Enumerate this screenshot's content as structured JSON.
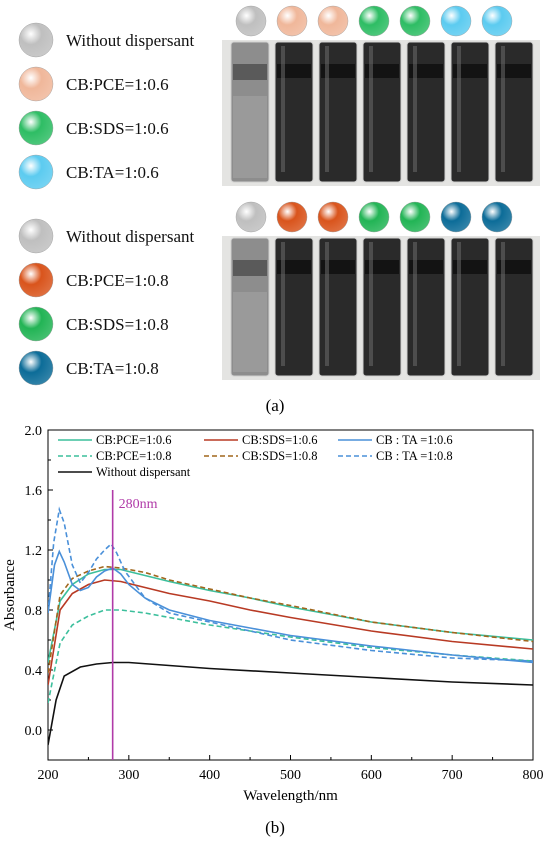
{
  "panel_a": {
    "label": "(a)",
    "groups": [
      {
        "legend": [
          {
            "label": "Without dispersant",
            "color": "#bfbfbf"
          },
          {
            "label": "CB:PCE=1:0.6",
            "color": "#f0b79a"
          },
          {
            "label": "CB:SDS=1:0.6",
            "color": "#2ebd64"
          },
          {
            "label": "CB:TA=1:0.6",
            "color": "#5ccbf0"
          }
        ],
        "vial_balls": [
          "#bfbfbf",
          "#f0b79a",
          "#f0b79a",
          "#2ebd64",
          "#2ebd64",
          "#5ccbf0",
          "#5ccbf0"
        ]
      },
      {
        "legend": [
          {
            "label": "Without dispersant",
            "color": "#bfbfbf"
          },
          {
            "label": "CB:PCE=1:0.8",
            "color": "#d9541c"
          },
          {
            "label": "CB:SDS=1:0.8",
            "color": "#22b455"
          },
          {
            "label": "CB:TA=1:0.8",
            "color": "#0c6c98"
          }
        ],
        "vial_balls": [
          "#bfbfbf",
          "#d9541c",
          "#d9541c",
          "#22b455",
          "#22b455",
          "#0c6c98",
          "#0c6c98"
        ]
      }
    ]
  },
  "panel_b": {
    "label": "(b)",
    "chart_data": {
      "type": "line",
      "title": "",
      "xlabel": "Wavelength/nm",
      "ylabel": "Absorbance",
      "xlim": [
        200,
        800
      ],
      "ylim": [
        -0.2,
        2.0
      ],
      "x_ticks": [
        200,
        300,
        400,
        500,
        600,
        700,
        800
      ],
      "y_ticks": [
        0.0,
        0.4,
        0.8,
        1.2,
        1.6,
        2.0
      ],
      "y_tick_labels": [
        "0.0",
        "0.4",
        "0.8",
        "1.2",
        "1.6",
        "2.0"
      ],
      "grid": false,
      "legend_position": "top",
      "annotation": {
        "x": 280,
        "label": "280nm",
        "color": "#b03aa8"
      },
      "series": [
        {
          "name": "CB:PCE=1:0.6",
          "color": "#3cbf9c",
          "dash": "solid",
          "points": [
            [
              200,
              0.45
            ],
            [
              215,
              0.86
            ],
            [
              230,
              0.97
            ],
            [
              250,
              1.04
            ],
            [
              270,
              1.07
            ],
            [
              290,
              1.07
            ],
            [
              320,
              1.03
            ],
            [
              350,
              0.99
            ],
            [
              400,
              0.93
            ],
            [
              450,
              0.88
            ],
            [
              500,
              0.82
            ],
            [
              600,
              0.72
            ],
            [
              700,
              0.65
            ],
            [
              800,
              0.6
            ]
          ]
        },
        {
          "name": "CB:PCE=1:0.8",
          "color": "#3cbf9c",
          "dash": "dashed",
          "points": [
            [
              200,
              0.18
            ],
            [
              215,
              0.58
            ],
            [
              230,
              0.7
            ],
            [
              250,
              0.76
            ],
            [
              270,
              0.8
            ],
            [
              290,
              0.8
            ],
            [
              320,
              0.78
            ],
            [
              350,
              0.75
            ],
            [
              400,
              0.7
            ],
            [
              450,
              0.66
            ],
            [
              500,
              0.62
            ],
            [
              600,
              0.55
            ],
            [
              700,
              0.5
            ],
            [
              800,
              0.46
            ]
          ]
        },
        {
          "name": "CB:SDS=1:0.6",
          "color": "#b83a24",
          "dash": "solid",
          "points": [
            [
              200,
              0.3
            ],
            [
              215,
              0.8
            ],
            [
              230,
              0.91
            ],
            [
              250,
              0.97
            ],
            [
              270,
              1.0
            ],
            [
              290,
              0.99
            ],
            [
              320,
              0.95
            ],
            [
              350,
              0.91
            ],
            [
              400,
              0.86
            ],
            [
              450,
              0.8
            ],
            [
              500,
              0.75
            ],
            [
              600,
              0.66
            ],
            [
              700,
              0.59
            ],
            [
              800,
              0.54
            ]
          ]
        },
        {
          "name": "CB:SDS=1:0.8",
          "color": "#a0661c",
          "dash": "dashed",
          "points": [
            [
              200,
              0.38
            ],
            [
              215,
              0.9
            ],
            [
              230,
              1.01
            ],
            [
              250,
              1.06
            ],
            [
              270,
              1.09
            ],
            [
              290,
              1.08
            ],
            [
              320,
              1.05
            ],
            [
              350,
              1.0
            ],
            [
              400,
              0.94
            ],
            [
              450,
              0.88
            ],
            [
              500,
              0.83
            ],
            [
              600,
              0.72
            ],
            [
              700,
              0.65
            ],
            [
              800,
              0.59
            ]
          ]
        },
        {
          "name": "CB : TA =1:0.6",
          "color": "#4a90d9",
          "dash": "solid",
          "points": [
            [
              200,
              0.78
            ],
            [
              208,
              1.1
            ],
            [
              214,
              1.19
            ],
            [
              220,
              1.12
            ],
            [
              230,
              0.97
            ],
            [
              240,
              0.93
            ],
            [
              250,
              0.95
            ],
            [
              260,
              1.02
            ],
            [
              270,
              1.06
            ],
            [
              280,
              1.08
            ],
            [
              290,
              1.04
            ],
            [
              300,
              0.97
            ],
            [
              320,
              0.88
            ],
            [
              350,
              0.8
            ],
            [
              400,
              0.73
            ],
            [
              450,
              0.68
            ],
            [
              500,
              0.63
            ],
            [
              600,
              0.56
            ],
            [
              700,
              0.5
            ],
            [
              800,
              0.45
            ]
          ]
        },
        {
          "name": "CB : TA =1:0.8",
          "color": "#4a90d9",
          "dash": "dashed",
          "points": [
            [
              200,
              0.78
            ],
            [
              207,
              1.25
            ],
            [
              214,
              1.47
            ],
            [
              220,
              1.38
            ],
            [
              230,
              1.1
            ],
            [
              240,
              0.98
            ],
            [
              250,
              1.05
            ],
            [
              260,
              1.14
            ],
            [
              270,
              1.2
            ],
            [
              278,
              1.24
            ],
            [
              285,
              1.18
            ],
            [
              295,
              1.06
            ],
            [
              320,
              0.88
            ],
            [
              350,
              0.78
            ],
            [
              400,
              0.72
            ],
            [
              450,
              0.66
            ],
            [
              500,
              0.6
            ],
            [
              600,
              0.53
            ],
            [
              700,
              0.48
            ],
            [
              800,
              0.46
            ]
          ]
        },
        {
          "name": "Without dispersant",
          "color": "#111111",
          "dash": "solid",
          "points": [
            [
              200,
              -0.1
            ],
            [
              210,
              0.2
            ],
            [
              220,
              0.36
            ],
            [
              240,
              0.42
            ],
            [
              260,
              0.44
            ],
            [
              280,
              0.45
            ],
            [
              300,
              0.45
            ],
            [
              350,
              0.43
            ],
            [
              400,
              0.41
            ],
            [
              500,
              0.38
            ],
            [
              600,
              0.35
            ],
            [
              700,
              0.32
            ],
            [
              800,
              0.3
            ]
          ]
        }
      ],
      "legend_rows": [
        [
          "CB:PCE=1:0.6",
          "CB:SDS=1:0.6",
          "CB : TA =1:0.6"
        ],
        [
          "CB:PCE=1:0.8",
          "CB:SDS=1:0.8",
          "CB : TA =1:0.8"
        ],
        [
          "Without dispersant"
        ]
      ]
    }
  }
}
